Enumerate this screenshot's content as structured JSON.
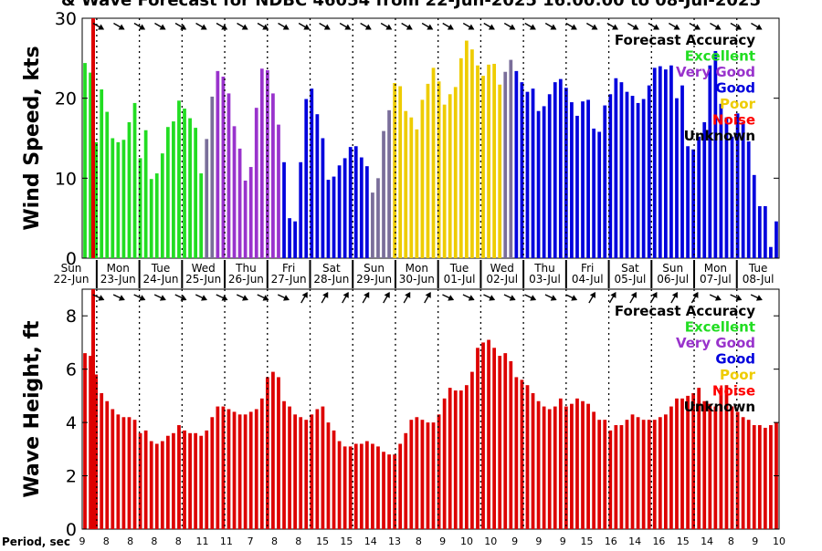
{
  "title": "& Wave Forecast for NDBC 46054 from 22-Jun-2025 16:00:00 to 08-Jul-2025",
  "accent_colors": {
    "excellent": "#22dd22",
    "very_good": "#9933cc",
    "good": "#0000dd",
    "poor": "#eecc00",
    "noise": "#ff0000",
    "unknown": "#000000",
    "wave_bars": "#dd0000",
    "current_time_line": "#dd0000",
    "transition": "#7a6e9a"
  },
  "legend": {
    "title": "Forecast Accuracy",
    "items": [
      {
        "label": "Excellent",
        "color": "#22dd22"
      },
      {
        "label": "Very Good",
        "color": "#9933cc"
      },
      {
        "label": "Good",
        "color": "#0000dd"
      },
      {
        "label": "Poor",
        "color": "#eecc00"
      },
      {
        "label": "Noise",
        "color": "#ff0000"
      },
      {
        "label": "Unknown",
        "color": "#000000"
      }
    ]
  },
  "period_label": "Period, sec",
  "chart_data": [
    {
      "type": "bar",
      "ylabel": "Wind Speed, kts",
      "ylim": [
        0,
        30
      ],
      "yticks": [
        0,
        10,
        20,
        30
      ],
      "grid": "vertical dotted at midnight",
      "day_labels": [
        {
          "day": "Sun",
          "date": "22-Jun"
        },
        {
          "day": "Mon",
          "date": "23-Jun"
        },
        {
          "day": "Tue",
          "date": "24-Jun"
        },
        {
          "day": "Wed",
          "date": "25-Jun"
        },
        {
          "day": "Thu",
          "date": "26-Jun"
        },
        {
          "day": "Fri",
          "date": "27-Jun"
        },
        {
          "day": "Sat",
          "date": "28-Jun"
        },
        {
          "day": "Sun",
          "date": "29-Jun"
        },
        {
          "day": "Mon",
          "date": "30-Jun"
        },
        {
          "day": "Tue",
          "date": "01-Jul"
        },
        {
          "day": "Wed",
          "date": "02-Jul"
        },
        {
          "day": "Thu",
          "date": "03-Jul"
        },
        {
          "day": "Fri",
          "date": "04-Jul"
        },
        {
          "day": "Sat",
          "date": "05-Jul"
        },
        {
          "day": "Sun",
          "date": "06-Jul"
        },
        {
          "day": "Mon",
          "date": "07-Jul"
        },
        {
          "day": "Tue",
          "date": "08-Jul"
        }
      ],
      "values": [
        24.4,
        23.2,
        14.5,
        21.1,
        18.3,
        15.0,
        14.5,
        14.8,
        17.0,
        19.4,
        12.5,
        16.0,
        9.9,
        10.6,
        13.1,
        16.4,
        17.1,
        19.7,
        18.7,
        17.5,
        16.3,
        10.6,
        14.9,
        20.2,
        23.4,
        22.7,
        20.6,
        16.5,
        13.7,
        9.7,
        11.4,
        18.8,
        23.7,
        23.5,
        20.6,
        16.7,
        12.0,
        5.0,
        4.6,
        12.0,
        19.9,
        21.2,
        18.0,
        15.0,
        9.8,
        10.2,
        11.6,
        12.5,
        13.9,
        14.0,
        12.6,
        11.5,
        8.2,
        10.0,
        15.9,
        18.5,
        21.9,
        21.5,
        18.4,
        17.6,
        16.1,
        19.8,
        21.8,
        23.8,
        22.1,
        19.2,
        20.5,
        21.4,
        25.0,
        27.2,
        26.1,
        24.1,
        22.8,
        24.2,
        24.3,
        21.7,
        23.3,
        24.8,
        23.4,
        22.0,
        20.8,
        21.2,
        18.4,
        19.0,
        20.5,
        22.0,
        22.4,
        21.3,
        19.5,
        17.8,
        19.6,
        19.8,
        16.2,
        15.8,
        19.1,
        20.5,
        22.5,
        22.0,
        20.8,
        20.3,
        19.4,
        19.9,
        21.6,
        23.8,
        24.0,
        23.6,
        24.1,
        20.0,
        21.6,
        14.0,
        13.6,
        15.2,
        17.0,
        24.1,
        25.9,
        19.3,
        17.6,
        15.2,
        18.1,
        17.0,
        14.6,
        10.4,
        6.5,
        6.5,
        1.4,
        4.6
      ],
      "colors_by_index": {
        "excellent": [
          0,
          21
        ],
        "transition_1": [
          22,
          23
        ],
        "very_good": [
          24,
          35
        ],
        "good_1": [
          36,
          51
        ],
        "transition_2": [
          52,
          55
        ],
        "poor": [
          56,
          75
        ],
        "transition_3": [
          76,
          77
        ],
        "good_2": [
          78,
          125
        ]
      },
      "direction_arrows": "wind direction arrows along top edge"
    },
    {
      "type": "bar",
      "ylabel": "Wave Height, ft",
      "ylim": [
        0,
        9
      ],
      "yticks": [
        0,
        2,
        4,
        6,
        8
      ],
      "grid": "vertical dotted at midnight",
      "values": [
        6.6,
        6.5,
        5.8,
        5.1,
        4.8,
        4.5,
        4.3,
        4.2,
        4.2,
        4.1,
        3.6,
        3.7,
        3.3,
        3.2,
        3.3,
        3.5,
        3.6,
        3.9,
        3.7,
        3.6,
        3.6,
        3.5,
        3.7,
        4.2,
        4.6,
        4.6,
        4.5,
        4.4,
        4.3,
        4.3,
        4.4,
        4.5,
        4.9,
        5.7,
        5.9,
        5.7,
        4.8,
        4.6,
        4.3,
        4.2,
        4.1,
        4.3,
        4.5,
        4.6,
        4.0,
        3.7,
        3.3,
        3.1,
        3.1,
        3.2,
        3.2,
        3.3,
        3.2,
        3.1,
        2.9,
        2.8,
        2.8,
        3.2,
        3.6,
        4.1,
        4.2,
        4.1,
        4.0,
        4.0,
        4.3,
        4.9,
        5.3,
        5.2,
        5.2,
        5.4,
        5.9,
        6.8,
        7.0,
        7.1,
        6.8,
        6.5,
        6.6,
        6.3,
        5.7,
        5.6,
        5.4,
        5.1,
        4.8,
        4.6,
        4.5,
        4.6,
        4.9,
        4.6,
        4.7,
        4.9,
        4.8,
        4.7,
        4.4,
        4.1,
        4.1,
        3.7,
        3.9,
        3.9,
        4.1,
        4.3,
        4.2,
        4.1,
        4.1,
        4.1,
        4.2,
        4.3,
        4.6,
        4.9,
        4.9,
        5.0,
        5.1,
        5.3,
        4.8,
        4.7,
        4.6,
        5.3,
        5.4,
        4.6,
        4.4,
        4.2,
        4.1,
        3.9,
        3.9,
        3.8,
        3.9,
        4.0
      ],
      "period_values": [
        "9",
        "8",
        "8",
        "8",
        "8",
        "11",
        "11",
        "7",
        "8",
        "8",
        "15",
        "15",
        "14",
        "13",
        "8",
        "9",
        "10",
        "10",
        "9",
        "9",
        "9",
        "15",
        "16",
        "14",
        "16",
        "15",
        "14",
        "8",
        "9",
        "10"
      ],
      "direction_arrows": "wave direction arrows along top edge"
    }
  ]
}
